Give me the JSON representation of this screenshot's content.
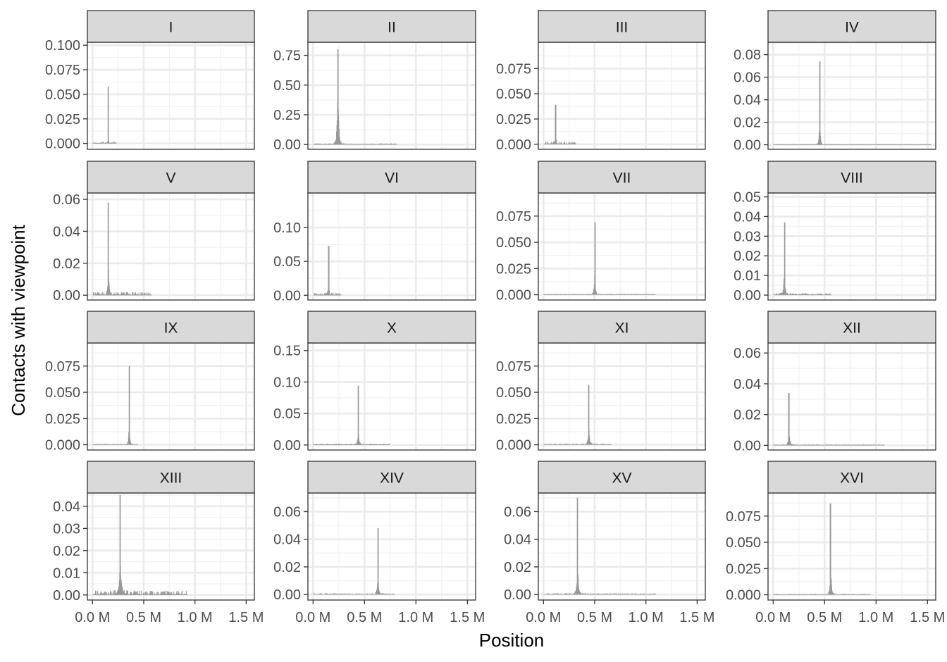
{
  "chart_data": {
    "type": "bar",
    "facet_layout": "4x4",
    "xlabel": "Position",
    "ylabel": "Contacts with viewpoint",
    "x_ticks": [
      {
        "value": 0.0,
        "label": "0.0 M"
      },
      {
        "value": 0.5,
        "label": "0.5 M"
      },
      {
        "value": 1.0,
        "label": "1.0 M"
      },
      {
        "value": 1.5,
        "label": "1.5 M"
      }
    ],
    "xlim": [
      -0.05,
      1.58
    ],
    "x_unit": "Mb",
    "grid": true,
    "colors": {
      "bars": "#999999",
      "strip_fill": "#d9d9d9",
      "panel_border": "#333333",
      "grid": "#ebebeb"
    },
    "panels": [
      {
        "label": "I",
        "ylim": [
          -0.006,
          0.103
        ],
        "y_ticks": [
          {
            "value": 0,
            "label": "0.000"
          },
          {
            "value": 0.025,
            "label": "0.025"
          },
          {
            "value": 0.05,
            "label": "0.050"
          },
          {
            "value": 0.075,
            "label": "0.075"
          },
          {
            "value": 0.1,
            "label": "0.100"
          }
        ],
        "chrom_length": 0.23,
        "peak_x": 0.151,
        "peak_y": 0.058,
        "spread": 0.004,
        "shoulder": 0.014,
        "base": 0.0008
      },
      {
        "label": "II",
        "ylim": [
          -0.04,
          0.86
        ],
        "y_ticks": [
          {
            "value": 0,
            "label": "0.00"
          },
          {
            "value": 0.25,
            "label": "0.25"
          },
          {
            "value": 0.5,
            "label": "0.50"
          },
          {
            "value": 0.75,
            "label": "0.75"
          }
        ],
        "chrom_length": 0.813,
        "peak_x": 0.238,
        "peak_y": 0.8,
        "spread": 0.01,
        "shoulder": 0.14,
        "base": 0.004
      },
      {
        "label": "III",
        "ylim": [
          -0.005,
          0.101
        ],
        "y_ticks": [
          {
            "value": 0,
            "label": "0.000"
          },
          {
            "value": 0.025,
            "label": "0.025"
          },
          {
            "value": 0.05,
            "label": "0.050"
          },
          {
            "value": 0.075,
            "label": "0.075"
          }
        ],
        "chrom_length": 0.317,
        "peak_x": 0.114,
        "peak_y": 0.039,
        "spread": 0.012,
        "shoulder": 0.012,
        "base": 0.001
      },
      {
        "label": "IV",
        "ylim": [
          -0.004,
          0.091
        ],
        "y_ticks": [
          {
            "value": 0,
            "label": "0.00"
          },
          {
            "value": 0.02,
            "label": "0.02"
          },
          {
            "value": 0.04,
            "label": "0.04"
          },
          {
            "value": 0.06,
            "label": "0.06"
          },
          {
            "value": 0.08,
            "label": "0.08"
          }
        ],
        "chrom_length": 1.532,
        "peak_x": 0.449,
        "peak_y": 0.074,
        "spread": 0.012,
        "shoulder": 0.015,
        "base": 0.0003
      },
      {
        "label": "V",
        "ylim": [
          -0.003,
          0.064
        ],
        "y_ticks": [
          {
            "value": 0,
            "label": "0.00"
          },
          {
            "value": 0.02,
            "label": "0.02"
          },
          {
            "value": 0.04,
            "label": "0.04"
          },
          {
            "value": 0.06,
            "label": "0.06"
          }
        ],
        "chrom_length": 0.577,
        "peak_x": 0.152,
        "peak_y": 0.058,
        "spread": 0.01,
        "shoulder": 0.033,
        "base": 0.0008
      },
      {
        "label": "VI",
        "ylim": [
          -0.007,
          0.151
        ],
        "y_ticks": [
          {
            "value": 0,
            "label": "0.00"
          },
          {
            "value": 0.05,
            "label": "0.05"
          },
          {
            "value": 0.1,
            "label": "0.10"
          }
        ],
        "chrom_length": 0.27,
        "peak_x": 0.148,
        "peak_y": 0.073,
        "spread": 0.01,
        "shoulder": 0.02,
        "base": 0.0015
      },
      {
        "label": "VII",
        "ylim": [
          -0.005,
          0.097
        ],
        "y_ticks": [
          {
            "value": 0,
            "label": "0.000"
          },
          {
            "value": 0.025,
            "label": "0.025"
          },
          {
            "value": 0.05,
            "label": "0.050"
          },
          {
            "value": 0.075,
            "label": "0.075"
          }
        ],
        "chrom_length": 1.091,
        "peak_x": 0.497,
        "peak_y": 0.069,
        "spread": 0.012,
        "shoulder": 0.014,
        "base": 0.0004
      },
      {
        "label": "VIII",
        "ylim": [
          -0.0025,
          0.052
        ],
        "y_ticks": [
          {
            "value": 0,
            "label": "0.00"
          },
          {
            "value": 0.01,
            "label": "0.01"
          },
          {
            "value": 0.02,
            "label": "0.02"
          },
          {
            "value": 0.03,
            "label": "0.03"
          },
          {
            "value": 0.04,
            "label": "0.04"
          },
          {
            "value": 0.05,
            "label": "0.05"
          }
        ],
        "chrom_length": 0.563,
        "peak_x": 0.105,
        "peak_y": 0.037,
        "spread": 0.016,
        "shoulder": 0.013,
        "base": 0.0004
      },
      {
        "label": "IX",
        "ylim": [
          -0.005,
          0.097
        ],
        "y_ticks": [
          {
            "value": 0,
            "label": "0.000"
          },
          {
            "value": 0.025,
            "label": "0.025"
          },
          {
            "value": 0.05,
            "label": "0.050"
          },
          {
            "value": 0.075,
            "label": "0.075"
          }
        ],
        "chrom_length": 0.44,
        "peak_x": 0.355,
        "peak_y": 0.075,
        "spread": 0.012,
        "shoulder": 0.01,
        "base": 0.0004
      },
      {
        "label": "X",
        "ylim": [
          -0.008,
          0.162
        ],
        "y_ticks": [
          {
            "value": 0,
            "label": "0.00"
          },
          {
            "value": 0.05,
            "label": "0.05"
          },
          {
            "value": 0.1,
            "label": "0.10"
          },
          {
            "value": 0.15,
            "label": "0.15"
          }
        ],
        "chrom_length": 0.745,
        "peak_x": 0.436,
        "peak_y": 0.094,
        "spread": 0.012,
        "shoulder": 0.015,
        "base": 0.0008
      },
      {
        "label": "XI",
        "ylim": [
          -0.005,
          0.097
        ],
        "y_ticks": [
          {
            "value": 0,
            "label": "0.000"
          },
          {
            "value": 0.025,
            "label": "0.025"
          },
          {
            "value": 0.05,
            "label": "0.050"
          },
          {
            "value": 0.075,
            "label": "0.075"
          }
        ],
        "chrom_length": 0.666,
        "peak_x": 0.44,
        "peak_y": 0.057,
        "spread": 0.015,
        "shoulder": 0.02,
        "base": 0.0005
      },
      {
        "label": "XII",
        "ylim": [
          -0.003,
          0.0665
        ],
        "y_ticks": [
          {
            "value": 0,
            "label": "0.00"
          },
          {
            "value": 0.02,
            "label": "0.02"
          },
          {
            "value": 0.04,
            "label": "0.04"
          },
          {
            "value": 0.06,
            "label": "0.06"
          }
        ],
        "chrom_length": 1.078,
        "peak_x": 0.151,
        "peak_y": 0.034,
        "spread": 0.015,
        "shoulder": 0.02,
        "base": 0.0003
      },
      {
        "label": "XIII",
        "ylim": [
          -0.0023,
          0.046
        ],
        "y_ticks": [
          {
            "value": 0,
            "label": "0.00"
          },
          {
            "value": 0.01,
            "label": "0.01"
          },
          {
            "value": 0.02,
            "label": "0.02"
          },
          {
            "value": 0.03,
            "label": "0.03"
          },
          {
            "value": 0.04,
            "label": "0.04"
          }
        ],
        "chrom_length": 0.924,
        "peak_x": 0.268,
        "peak_y": 0.045,
        "spread": 0.022,
        "shoulder": 0.02,
        "base": 0.0008
      },
      {
        "label": "XIV",
        "ylim": [
          -0.004,
          0.0735
        ],
        "y_ticks": [
          {
            "value": 0,
            "label": "0.00"
          },
          {
            "value": 0.02,
            "label": "0.02"
          },
          {
            "value": 0.04,
            "label": "0.04"
          },
          {
            "value": 0.06,
            "label": "0.06"
          }
        ],
        "chrom_length": 0.784,
        "peak_x": 0.627,
        "peak_y": 0.048,
        "spread": 0.012,
        "shoulder": 0.025,
        "base": 0.0004
      },
      {
        "label": "XV",
        "ylim": [
          -0.004,
          0.0735
        ],
        "y_ticks": [
          {
            "value": 0,
            "label": "0.00"
          },
          {
            "value": 0.02,
            "label": "0.02"
          },
          {
            "value": 0.04,
            "label": "0.04"
          },
          {
            "value": 0.06,
            "label": "0.06"
          }
        ],
        "chrom_length": 1.091,
        "peak_x": 0.33,
        "peak_y": 0.07,
        "spread": 0.015,
        "shoulder": 0.022,
        "base": 0.0004
      },
      {
        "label": "XVI",
        "ylim": [
          -0.005,
          0.097
        ],
        "y_ticks": [
          {
            "value": 0,
            "label": "0.000"
          },
          {
            "value": 0.025,
            "label": "0.025"
          },
          {
            "value": 0.05,
            "label": "0.050"
          },
          {
            "value": 0.075,
            "label": "0.075"
          }
        ],
        "chrom_length": 0.948,
        "peak_x": 0.556,
        "peak_y": 0.087,
        "spread": 0.012,
        "shoulder": 0.03,
        "base": 0.0004
      }
    ]
  }
}
